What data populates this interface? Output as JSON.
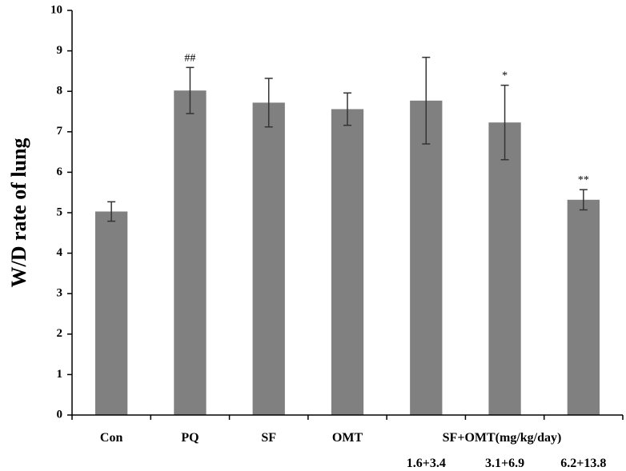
{
  "chart_data": {
    "type": "bar",
    "title": "",
    "xlabel": "",
    "ylabel": "W/D rate of  lung",
    "ylim": [
      0,
      10
    ],
    "yticks": [
      0,
      1,
      2,
      3,
      4,
      5,
      6,
      7,
      8,
      9,
      10
    ],
    "categories": [
      "Con",
      "PQ",
      "SF",
      "OMT",
      "",
      "",
      ""
    ],
    "values": [
      5.03,
      8.02,
      7.72,
      7.56,
      7.77,
      7.23,
      5.32
    ],
    "errors": [
      0.24,
      0.57,
      0.6,
      0.4,
      1.07,
      0.92,
      0.25
    ],
    "significance": [
      "",
      "##",
      "",
      "",
      "",
      "*",
      "**"
    ],
    "group_label": "SF+OMT(mg/kg/day)",
    "dose_labels": [
      "1.6+3.4",
      "3.1+6.9",
      "6.2+13.8"
    ],
    "bar_color": "#808080",
    "axis_color": "#000000"
  }
}
